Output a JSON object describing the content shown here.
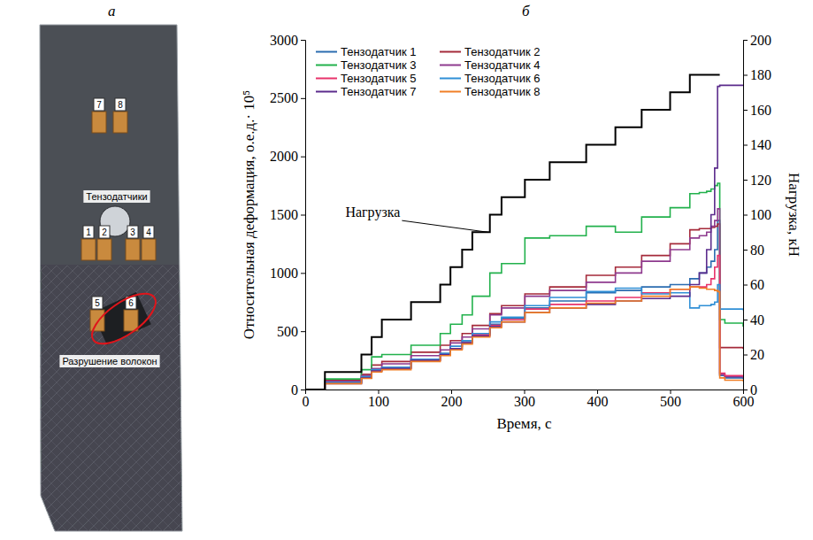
{
  "panel_labels": {
    "a": "а",
    "b": "б"
  },
  "photo": {
    "gauge_labels": [
      "1",
      "2",
      "3",
      "4",
      "5",
      "6",
      "7",
      "8"
    ],
    "gauges_label": "Тензодатчики",
    "damage_label": "Разрушение волокон"
  },
  "chart_data": {
    "type": "line",
    "xlabel": "Время, с",
    "ylabel": "Относительная деформация, о.е.д.· 10⁵",
    "y2label": "Нагрузка, кН",
    "xlim": [
      0,
      600
    ],
    "xticks": [
      0,
      100,
      200,
      300,
      400,
      500,
      600
    ],
    "ylim": [
      0,
      3000
    ],
    "yticks": [
      0,
      500,
      1000,
      1500,
      2000,
      2500,
      3000
    ],
    "y2lim": [
      0,
      200
    ],
    "y2ticks": [
      0,
      20,
      40,
      60,
      80,
      100,
      120,
      140,
      160,
      180,
      200
    ],
    "grid": false,
    "legend": "upper left",
    "x": [
      0,
      27,
      77,
      91,
      105,
      145,
      185,
      199,
      215,
      229,
      253,
      269,
      301,
      335,
      385,
      425,
      461,
      500,
      527,
      540,
      550,
      556,
      561,
      565,
      568,
      575,
      600
    ],
    "series": [
      {
        "name": "Тензодатчик 1",
        "color": "#2b6cb0",
        "line_style": "step",
        "values": [
          0,
          60,
          110,
          170,
          190,
          260,
          310,
          370,
          410,
          480,
          560,
          610,
          700,
          760,
          830,
          850,
          880,
          900,
          950,
          1000,
          1050,
          1100,
          1200,
          1450,
          120,
          100,
          90
        ]
      },
      {
        "name": "Тензодатчик 2",
        "color": "#a52a3a",
        "line_style": "step",
        "values": [
          0,
          80,
          130,
          210,
          240,
          320,
          380,
          420,
          480,
          550,
          650,
          720,
          820,
          880,
          980,
          1050,
          1150,
          1250,
          1370,
          1380,
          1380,
          1390,
          1400,
          1420,
          360,
          360,
          350
        ]
      },
      {
        "name": "Тензодатчик 3",
        "color": "#22b14c",
        "line_style": "step",
        "values": [
          0,
          90,
          170,
          280,
          300,
          380,
          480,
          560,
          640,
          800,
          1000,
          1080,
          1300,
          1320,
          1400,
          1350,
          1480,
          1560,
          1680,
          1690,
          1700,
          1720,
          1750,
          1770,
          600,
          570,
          540
        ]
      },
      {
        "name": "Тензодатчик 4",
        "color": "#8e3a8e",
        "line_style": "step",
        "values": [
          0,
          70,
          120,
          180,
          220,
          290,
          340,
          400,
          450,
          520,
          640,
          700,
          800,
          850,
          920,
          1000,
          1100,
          1200,
          1300,
          1320,
          1350,
          1400,
          1450,
          1550,
          130,
          110,
          100
        ]
      },
      {
        "name": "Тензодатчик 5",
        "color": "#e8336b",
        "line_style": "step",
        "values": [
          0,
          55,
          100,
          160,
          180,
          250,
          300,
          350,
          400,
          470,
          550,
          600,
          690,
          730,
          760,
          790,
          830,
          860,
          880,
          880,
          900,
          950,
          1050,
          1150,
          140,
          120,
          110
        ]
      },
      {
        "name": "Тензодатчик 6",
        "color": "#2f8fd6",
        "line_style": "step",
        "values": [
          0,
          60,
          110,
          170,
          190,
          260,
          310,
          370,
          420,
          480,
          580,
          620,
          720,
          790,
          840,
          870,
          820,
          830,
          700,
          720,
          720,
          730,
          750,
          900,
          690,
          690,
          680
        ]
      },
      {
        "name": "Тензодатчик 7",
        "color": "#5b2b8c",
        "line_style": "step",
        "values": [
          0,
          50,
          100,
          160,
          180,
          250,
          300,
          350,
          400,
          460,
          540,
          580,
          660,
          700,
          730,
          760,
          780,
          800,
          900,
          1000,
          1200,
          1500,
          1900,
          2600,
          2610,
          2610,
          2610
        ]
      },
      {
        "name": "Тензодатчик 8",
        "color": "#f07e26",
        "line_style": "step",
        "values": [
          0,
          50,
          95,
          150,
          170,
          240,
          290,
          340,
          390,
          450,
          530,
          580,
          660,
          700,
          740,
          760,
          800,
          860,
          880,
          870,
          860,
          860,
          850,
          840,
          100,
          80,
          70
        ]
      },
      {
        "color": "#000000",
        "line_style": "step",
        "axis": "y2",
        "x": [
          0,
          27,
          77,
          91,
          105,
          145,
          185,
          199,
          215,
          229,
          253,
          269,
          301,
          335,
          385,
          425,
          461,
          500,
          527,
          568
        ],
        "values": [
          0,
          10,
          20,
          30,
          40,
          50,
          60,
          70,
          80,
          90,
          100,
          110,
          120,
          130,
          140,
          150,
          160,
          170,
          180,
          180
        ]
      }
    ],
    "annotations": [
      {
        "text": "Нагрузка",
        "x": 55,
        "y": 1480,
        "target_x": 250,
        "target_y2": 90
      }
    ]
  }
}
